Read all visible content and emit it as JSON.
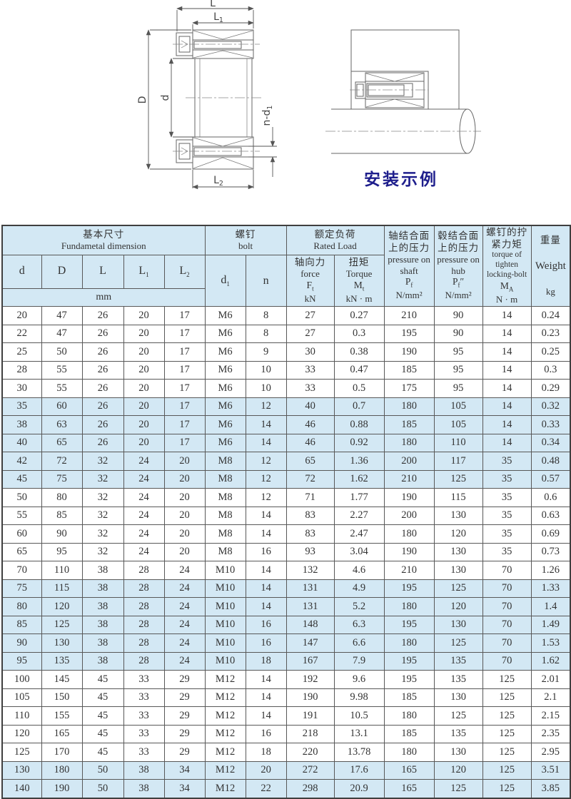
{
  "figure": {
    "caption": "安装示例"
  },
  "diagram": {
    "labels": {
      "L": "L",
      "L1": {
        "base": "L",
        "sub": "1"
      },
      "L2": {
        "base": "L",
        "sub": "2"
      },
      "D": "D",
      "d": "d",
      "nd1": {
        "base": "n-d",
        "sub": "1"
      }
    }
  },
  "table": {
    "header": {
      "basic": {
        "zh": "基本尺寸",
        "en": "Fundametal dimension",
        "unit": "mm",
        "cols": [
          {
            "base": "d",
            "sub": ""
          },
          {
            "base": "D",
            "sub": ""
          },
          {
            "base": "L",
            "sub": ""
          },
          {
            "base": "L",
            "sub": "1"
          },
          {
            "base": "L",
            "sub": "2"
          }
        ]
      },
      "bolt": {
        "zh": "螺钉",
        "en": "bolt",
        "d1": {
          "base": "d",
          "sub": "1"
        },
        "n": "n"
      },
      "rated": {
        "zh": "额定负荷",
        "en": "Rated Load",
        "force": {
          "zh": "轴向力",
          "en": "force",
          "sym": {
            "base": "F",
            "sub": "t"
          },
          "unit": "kN"
        },
        "torque": {
          "zh": "扭矩",
          "en": "Torque",
          "sym": {
            "base": "M",
            "sub": "t"
          },
          "unit": "kN · m"
        }
      },
      "pressure_shaft": {
        "zh": "轴结合面上的压力",
        "en": "pressure on shaft",
        "sym": {
          "base": "P",
          "sub": "f",
          "suffix": ""
        },
        "unit": "N/mm²"
      },
      "pressure_hub": {
        "zh": "毂结合面上的压力",
        "en": "pressure on hub",
        "sym": {
          "base": "P",
          "sub": "f",
          "suffix": "″"
        },
        "unit": "N/mm²"
      },
      "tighten": {
        "zh": "螺钉的拧紧力矩",
        "en": "torque of tighten locking-bolt",
        "sym": {
          "base": "M",
          "sub": "A"
        },
        "unit": "N · m"
      },
      "weight": {
        "zh": "重量",
        "en": "Weight",
        "unit": "kg"
      }
    },
    "rows": [
      [
        "20",
        "47",
        "26",
        "20",
        "17",
        "M6",
        "8",
        "27",
        "0.27",
        "210",
        "90",
        "14",
        "0.24"
      ],
      [
        "22",
        "47",
        "26",
        "20",
        "17",
        "M6",
        "8",
        "27",
        "0.3",
        "195",
        "90",
        "14",
        "0.23"
      ],
      [
        "25",
        "50",
        "26",
        "20",
        "17",
        "M6",
        "9",
        "30",
        "0.38",
        "190",
        "95",
        "14",
        "0.25"
      ],
      [
        "28",
        "55",
        "26",
        "20",
        "17",
        "M6",
        "10",
        "33",
        "0.47",
        "185",
        "95",
        "14",
        "0.3"
      ],
      [
        "30",
        "55",
        "26",
        "20",
        "17",
        "M6",
        "10",
        "33",
        "0.5",
        "175",
        "95",
        "14",
        "0.29"
      ],
      [
        "35",
        "60",
        "26",
        "20",
        "17",
        "M6",
        "12",
        "40",
        "0.7",
        "180",
        "105",
        "14",
        "0.32"
      ],
      [
        "38",
        "63",
        "26",
        "20",
        "17",
        "M6",
        "14",
        "46",
        "0.88",
        "185",
        "105",
        "14",
        "0.33"
      ],
      [
        "40",
        "65",
        "26",
        "20",
        "17",
        "M6",
        "14",
        "46",
        "0.92",
        "180",
        "110",
        "14",
        "0.34"
      ],
      [
        "42",
        "72",
        "32",
        "24",
        "20",
        "M8",
        "12",
        "65",
        "1.36",
        "200",
        "117",
        "35",
        "0.48"
      ],
      [
        "45",
        "75",
        "32",
        "24",
        "20",
        "M8",
        "12",
        "72",
        "1.62",
        "210",
        "125",
        "35",
        "0.57"
      ],
      [
        "50",
        "80",
        "32",
        "24",
        "20",
        "M8",
        "12",
        "71",
        "1.77",
        "190",
        "115",
        "35",
        "0.6"
      ],
      [
        "55",
        "85",
        "32",
        "24",
        "20",
        "M8",
        "14",
        "83",
        "2.27",
        "200",
        "130",
        "35",
        "0.63"
      ],
      [
        "60",
        "90",
        "32",
        "24",
        "20",
        "M8",
        "14",
        "83",
        "2.47",
        "180",
        "120",
        "35",
        "0.69"
      ],
      [
        "65",
        "95",
        "32",
        "24",
        "20",
        "M8",
        "16",
        "93",
        "3.04",
        "190",
        "130",
        "35",
        "0.73"
      ],
      [
        "70",
        "110",
        "38",
        "28",
        "24",
        "M10",
        "14",
        "132",
        "4.6",
        "210",
        "130",
        "70",
        "1.26"
      ],
      [
        "75",
        "115",
        "38",
        "28",
        "24",
        "M10",
        "14",
        "131",
        "4.9",
        "195",
        "125",
        "70",
        "1.33"
      ],
      [
        "80",
        "120",
        "38",
        "28",
        "24",
        "M10",
        "14",
        "131",
        "5.2",
        "180",
        "120",
        "70",
        "1.4"
      ],
      [
        "85",
        "125",
        "38",
        "28",
        "24",
        "M10",
        "16",
        "148",
        "6.3",
        "195",
        "130",
        "70",
        "1.49"
      ],
      [
        "90",
        "130",
        "38",
        "28",
        "24",
        "M10",
        "16",
        "147",
        "6.6",
        "180",
        "125",
        "70",
        "1.53"
      ],
      [
        "95",
        "135",
        "38",
        "28",
        "24",
        "M10",
        "18",
        "167",
        "7.9",
        "195",
        "135",
        "70",
        "1.62"
      ],
      [
        "100",
        "145",
        "45",
        "33",
        "29",
        "M12",
        "14",
        "192",
        "9.6",
        "195",
        "135",
        "125",
        "2.01"
      ],
      [
        "105",
        "150",
        "45",
        "33",
        "29",
        "M12",
        "14",
        "190",
        "9.98",
        "185",
        "130",
        "125",
        "2.1"
      ],
      [
        "110",
        "155",
        "45",
        "33",
        "29",
        "M12",
        "14",
        "191",
        "10.5",
        "180",
        "125",
        "125",
        "2.15"
      ],
      [
        "120",
        "165",
        "45",
        "33",
        "29",
        "M12",
        "16",
        "218",
        "13.1",
        "185",
        "135",
        "125",
        "2.35"
      ],
      [
        "125",
        "170",
        "45",
        "33",
        "29",
        "M12",
        "18",
        "220",
        "13.78",
        "180",
        "130",
        "125",
        "2.95"
      ],
      [
        "130",
        "180",
        "50",
        "38",
        "34",
        "M12",
        "20",
        "272",
        "17.6",
        "165",
        "120",
        "125",
        "3.51"
      ],
      [
        "140",
        "190",
        "50",
        "38",
        "34",
        "M12",
        "22",
        "298",
        "20.9",
        "165",
        "125",
        "125",
        "3.85"
      ]
    ]
  }
}
